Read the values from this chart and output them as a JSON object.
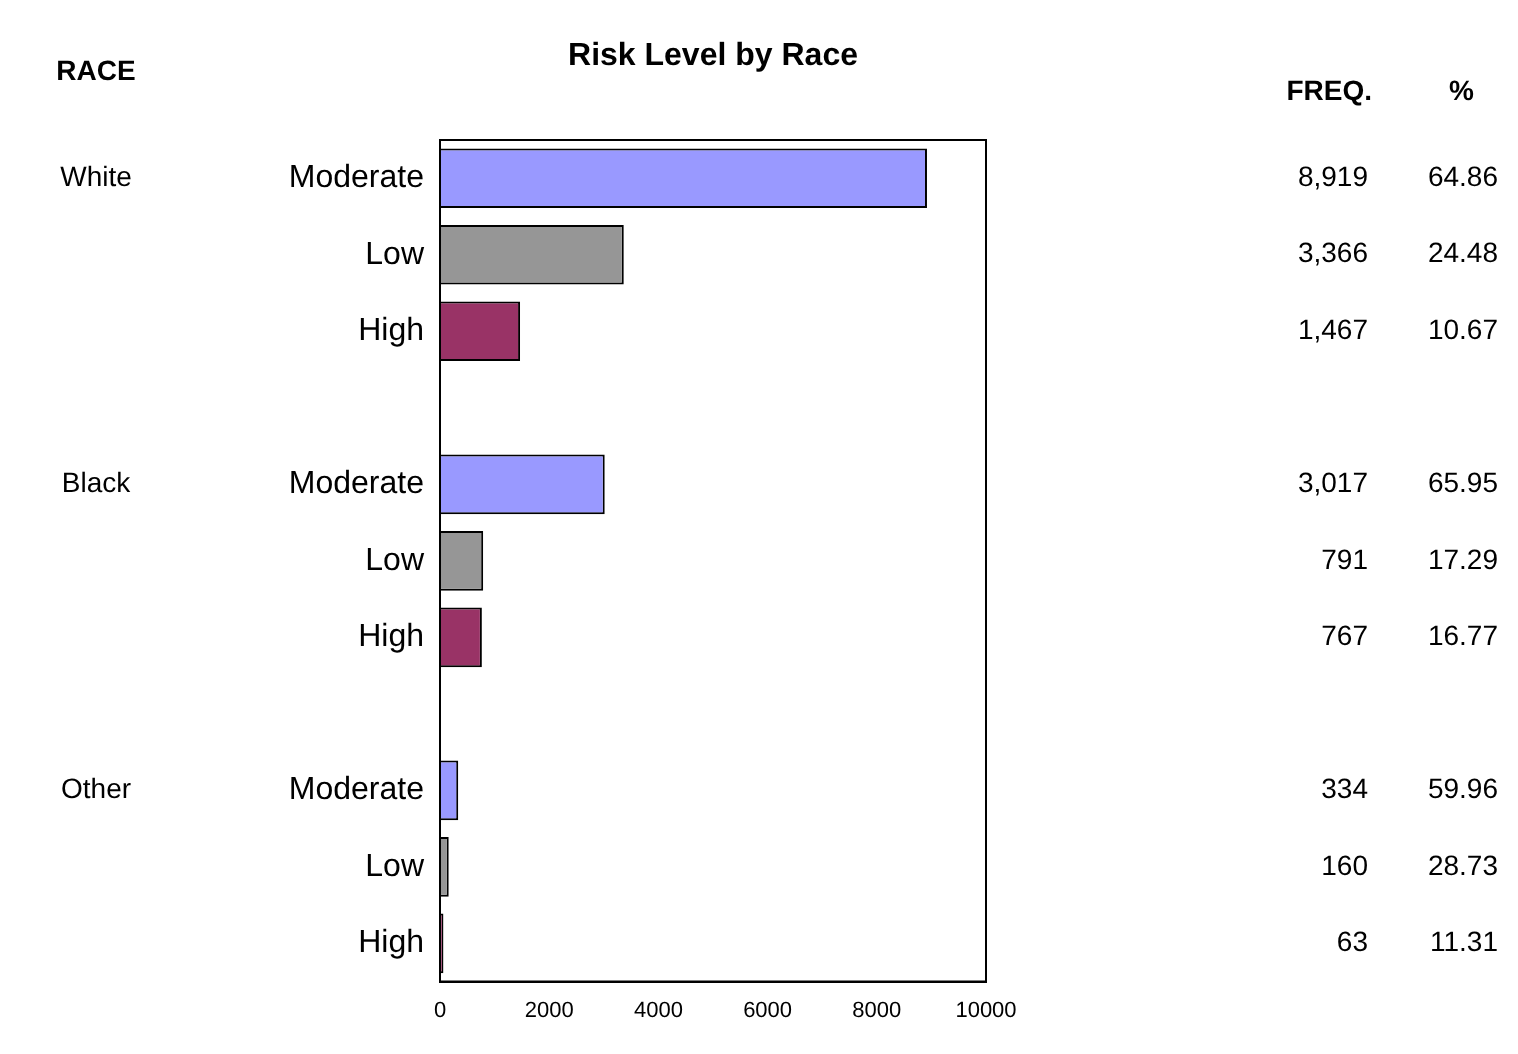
{
  "chart_data": {
    "type": "bar",
    "orientation": "horizontal",
    "title": "Risk Level by Race",
    "categories": [
      "Moderate",
      "Low",
      "High",
      null,
      "Moderate",
      "Low",
      "High",
      null,
      "Moderate",
      "Low",
      "High"
    ],
    "values": [
      8919,
      3366,
      1467,
      null,
      3017,
      791,
      767,
      null,
      334,
      160,
      63
    ],
    "colors": [
      "#9999ff",
      "#969696",
      "#993366",
      null,
      "#9999ff",
      "#969696",
      "#993366",
      null,
      "#9999ff",
      "#969696",
      "#993366"
    ],
    "value_labels": [
      "8,919 64.86",
      "3,366 24.48",
      "1,467 10.67",
      null,
      "3,017 65.95",
      "791 17.29",
      "767 16.77",
      null,
      "334 59.96",
      "160 28.73",
      "63 11.31"
    ],
    "annotations": [
      "RACE",
      "White",
      "Black",
      "Other",
      "FREQ.",
      "%"
    ],
    "xlim": [
      0,
      10000
    ],
    "xticks": [
      0,
      2000,
      4000,
      6000,
      8000,
      10000
    ],
    "grid": false,
    "legend": false
  }
}
